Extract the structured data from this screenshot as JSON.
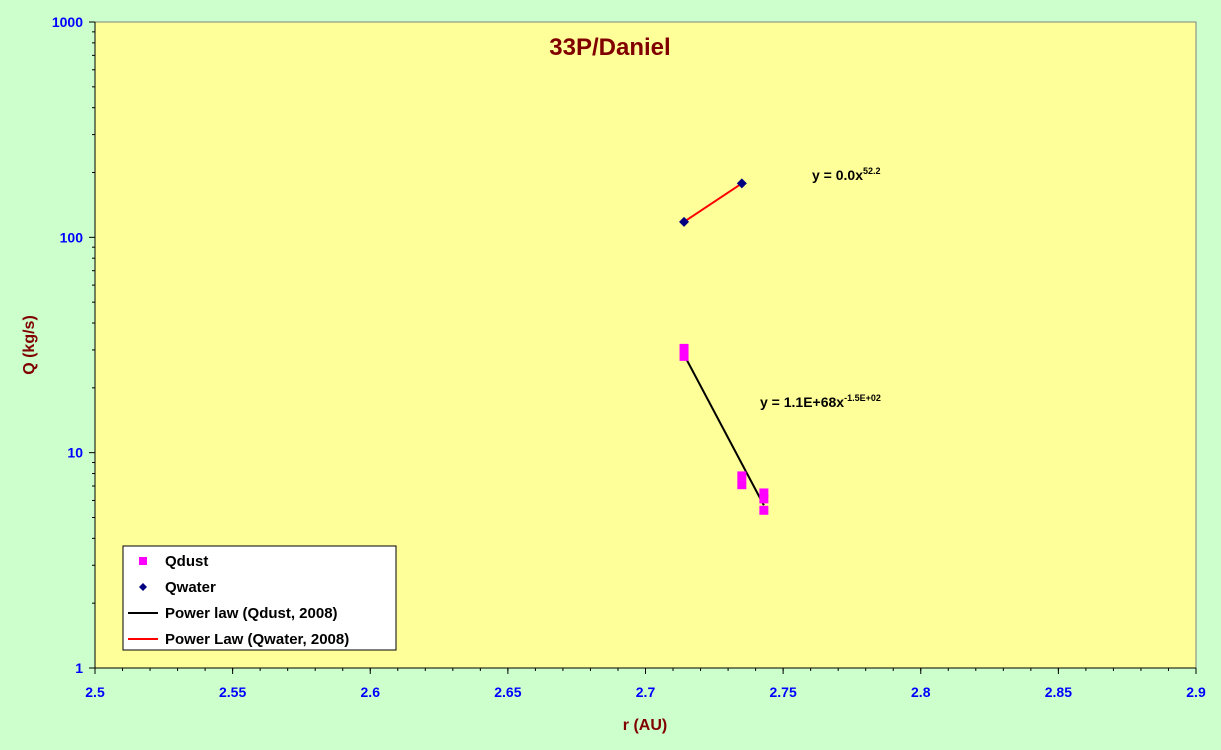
{
  "chart_data": {
    "type": "scatter",
    "title": "33P/Daniel",
    "xlabel": "r (AU)",
    "ylabel": "Q (kg/s)",
    "xlim": [
      2.5,
      2.9
    ],
    "ylim": [
      1,
      1000
    ],
    "yscale": "log",
    "x_ticks": [
      "2.5",
      "2.55",
      "2.6",
      "2.65",
      "2.7",
      "2.75",
      "2.8",
      "2.85",
      "2.9"
    ],
    "y_ticks": [
      "1",
      "10",
      "100",
      "1000"
    ],
    "grid": false,
    "background": "#ffff99",
    "outer_background": "#ccffcc",
    "series": [
      {
        "name": "Qdust",
        "marker": "square",
        "color": "#ff00ff",
        "points": [
          {
            "x": 2.714,
            "y": 30.5
          },
          {
            "x": 2.714,
            "y": 28.0
          },
          {
            "x": 2.735,
            "y": 7.8
          },
          {
            "x": 2.735,
            "y": 7.1
          },
          {
            "x": 2.743,
            "y": 6.5
          },
          {
            "x": 2.743,
            "y": 6.1
          },
          {
            "x": 2.743,
            "y": 5.4
          }
        ]
      },
      {
        "name": "Qwater",
        "marker": "diamond",
        "color": "#000080",
        "points": [
          {
            "x": 2.714,
            "y": 118
          },
          {
            "x": 2.735,
            "y": 178
          }
        ]
      }
    ],
    "trendlines": [
      {
        "name": "Power law (Qdust, 2008)",
        "color": "#000000",
        "x": [
          2.714,
          2.743
        ],
        "y": [
          28.5,
          5.7
        ],
        "equation_main": "y = 1.1E+68x",
        "equation_exp": "-1.5E+02"
      },
      {
        "name": "Power Law (Qwater, 2008)",
        "color": "#ff0000",
        "x": [
          2.714,
          2.735
        ],
        "y": [
          118,
          178
        ],
        "equation_main": "y = 0.0x",
        "equation_exp": "52.2"
      }
    ],
    "legend_position": "bottom-left"
  }
}
